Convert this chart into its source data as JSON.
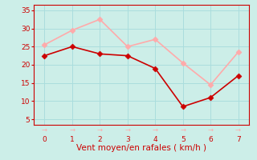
{
  "x": [
    0,
    1,
    2,
    3,
    4,
    5,
    6,
    7
  ],
  "y_moyen": [
    22.5,
    25.0,
    23.0,
    22.5,
    19.0,
    8.5,
    11.0,
    17.0
  ],
  "y_rafales": [
    25.5,
    29.5,
    32.5,
    25.0,
    27.0,
    20.5,
    14.5,
    23.5
  ],
  "color_moyen": "#cc0000",
  "color_rafales": "#ffaaaa",
  "bg_color": "#cceee8",
  "grid_color": "#aadddd",
  "axis_color": "#cc0000",
  "xlabel": "Vent moyen/en rafales ( km/h )",
  "xlabel_color": "#cc0000",
  "yticks": [
    5,
    10,
    15,
    20,
    25,
    30,
    35
  ],
  "xticks": [
    0,
    1,
    2,
    3,
    4,
    5,
    6,
    7
  ],
  "xlim": [
    -0.4,
    7.4
  ],
  "ylim": [
    3.5,
    36.5
  ],
  "markersize": 3.5,
  "linewidth": 1.2,
  "tick_fontsize": 6.5,
  "xlabel_fontsize": 7.5
}
